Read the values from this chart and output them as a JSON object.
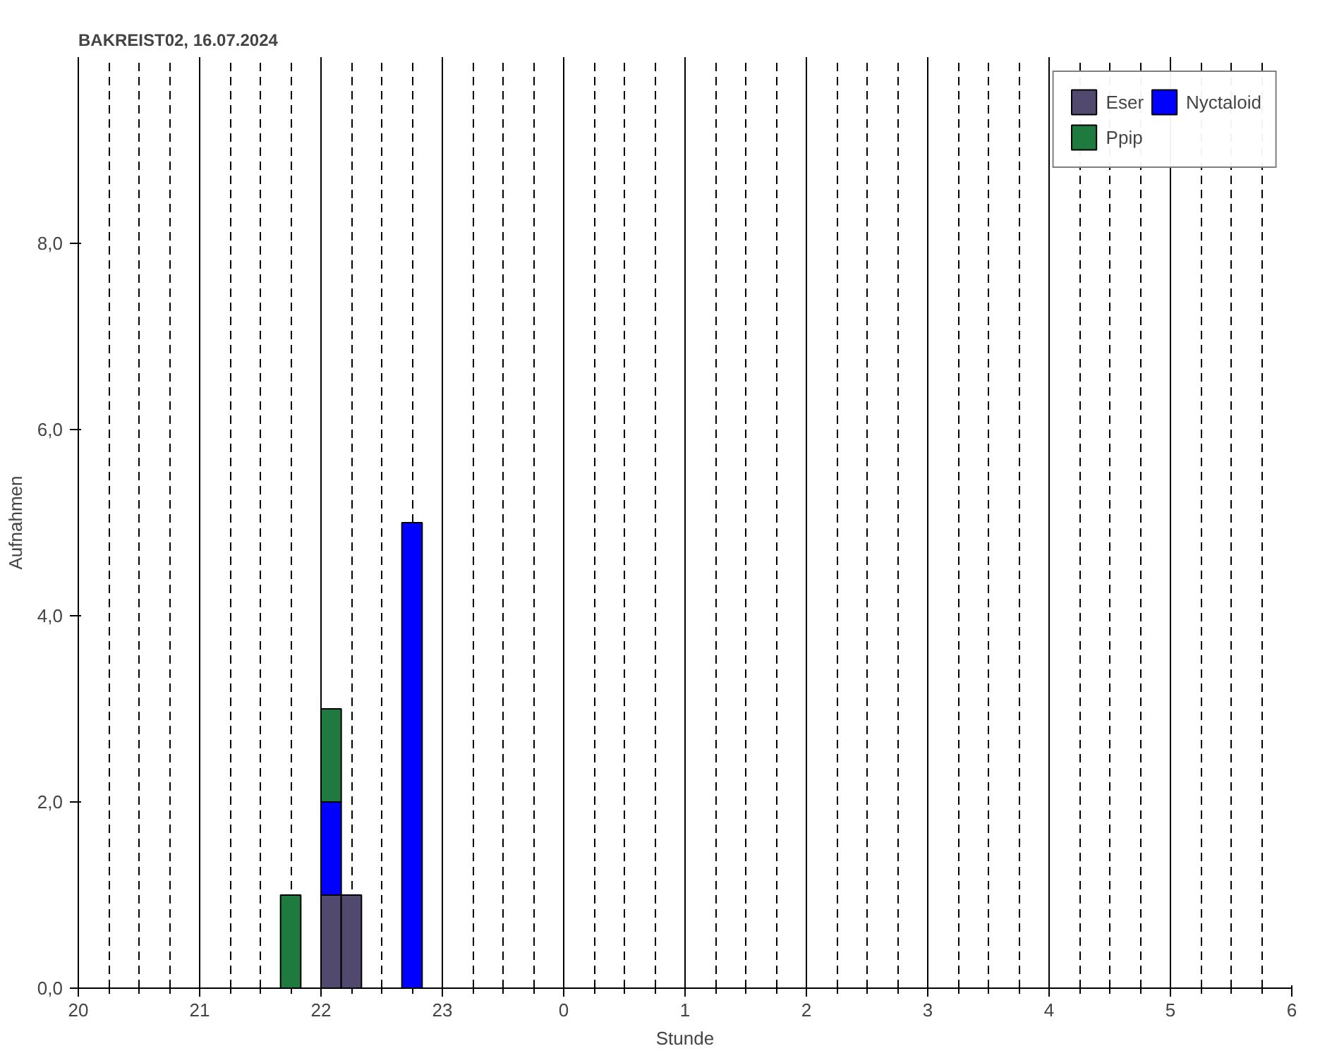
{
  "chart_data": {
    "type": "bar",
    "stacked": true,
    "title": "BAKREIST02, 16.07.2024",
    "xlabel": "Stunde",
    "ylabel": "Aufnahmen",
    "x": [
      "2024-07-16T21:45",
      "2024-07-16T22:05",
      "2024-07-16T22:15",
      "2024-07-16T22:45"
    ],
    "series": [
      {
        "name": "Eser",
        "color": "#524a6e",
        "values": [
          null,
          1,
          1,
          null
        ]
      },
      {
        "name": "Nyctaloid",
        "color": "#0000ff",
        "values": [
          null,
          1,
          null,
          5
        ]
      },
      {
        "name": "Ppip",
        "color": "#1e7a3e",
        "values": [
          1,
          1,
          null,
          null
        ]
      }
    ],
    "xlim": [
      "2024-07-16T20:00",
      "2024-07-17T06:00"
    ],
    "xticks": [
      {
        "value": "2024-07-16T20:00",
        "label": "20"
      },
      {
        "value": "2024-07-16T21:00",
        "label": "21"
      },
      {
        "value": "2024-07-16T22:00",
        "label": "22"
      },
      {
        "value": "2024-07-16T23:00",
        "label": "23"
      },
      {
        "value": "2024-07-17T00:00",
        "label": "0"
      },
      {
        "value": "2024-07-17T01:00",
        "label": "1"
      },
      {
        "value": "2024-07-17T02:00",
        "label": "2"
      },
      {
        "value": "2024-07-17T03:00",
        "label": "3"
      },
      {
        "value": "2024-07-17T04:00",
        "label": "4"
      },
      {
        "value": "2024-07-17T05:00",
        "label": "5"
      },
      {
        "value": "2024-07-17T06:00",
        "label": "6"
      }
    ],
    "ylim": [
      0,
      10
    ],
    "yticks": [
      {
        "value": 0,
        "label": "0,0"
      },
      {
        "value": 2,
        "label": "2,0"
      },
      {
        "value": 4,
        "label": "4,0"
      },
      {
        "value": 6,
        "label": "6,0"
      },
      {
        "value": 8,
        "label": "8,0"
      }
    ],
    "grid": "x",
    "legend": "top right"
  }
}
